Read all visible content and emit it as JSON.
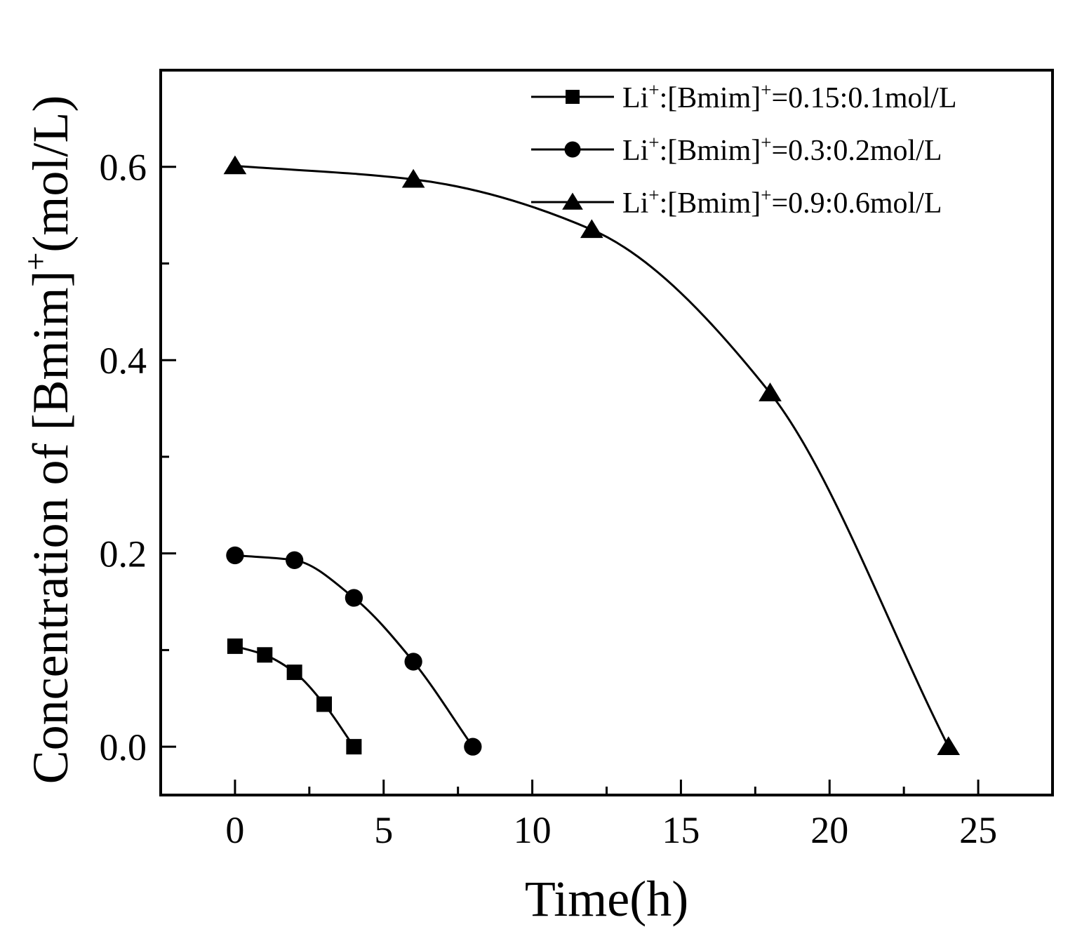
{
  "chart_data": {
    "type": "line",
    "title": "",
    "xlabel": "Time(h)",
    "ylabel_prefix": "Concentration of [Bmim]",
    "ylabel_sup": "+",
    "ylabel_suffix": "(mol/L)",
    "xlim": [
      -2.5,
      27.5
    ],
    "ylim": [
      -0.05,
      0.7
    ],
    "xticks": [
      0,
      5,
      10,
      15,
      20,
      25
    ],
    "xtick_labels": [
      "0",
      "5",
      "10",
      "15",
      "20",
      "25"
    ],
    "yticks": [
      0.0,
      0.2,
      0.4,
      0.6
    ],
    "ytick_labels": [
      "0.0",
      "0.2",
      "0.4",
      "0.6"
    ],
    "legend_position": "top-right",
    "grid": false,
    "series": [
      {
        "name": "Li+:[Bmim]+=0.15:0.1mol/L",
        "label_parts": [
          "Li",
          "+",
          ":[Bmim]",
          "+",
          "=0.15:0.1mol/L"
        ],
        "marker": "square",
        "x": [
          0,
          1,
          2,
          3,
          4
        ],
        "y": [
          0.104,
          0.095,
          0.077,
          0.044,
          0.0
        ]
      },
      {
        "name": "Li+:[Bmim]+=0.3:0.2mol/L",
        "label_parts": [
          "Li",
          "+",
          ":[Bmim]",
          "+",
          "=0.3:0.2mol/L"
        ],
        "marker": "circle",
        "x": [
          0,
          2,
          4,
          6,
          8
        ],
        "y": [
          0.198,
          0.193,
          0.154,
          0.088,
          0.0
        ]
      },
      {
        "name": "Li+:[Bmim]+=0.9:0.6mol/L",
        "label_parts": [
          "Li",
          "+",
          ":[Bmim]",
          "+",
          "=0.9:0.6mol/L"
        ],
        "marker": "triangle",
        "x": [
          0,
          6,
          12,
          18,
          24
        ],
        "y": [
          0.601,
          0.587,
          0.535,
          0.366,
          0.0
        ]
      }
    ]
  }
}
